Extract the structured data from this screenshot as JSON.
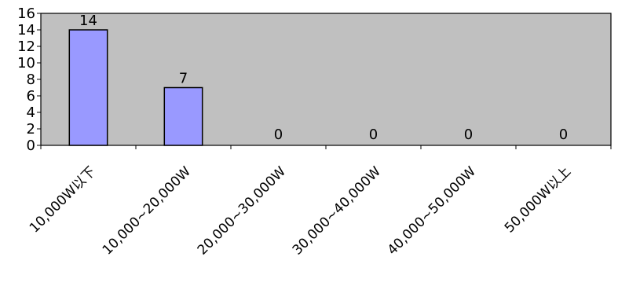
{
  "chart_data": {
    "type": "bar",
    "categories": [
      "10,000W以下",
      "10,000~20,000W",
      "20,000~30,000W",
      "30,000~40,000W",
      "40,000~50,000W",
      "50,000W以上"
    ],
    "values": [
      14,
      7,
      0,
      0,
      0,
      0
    ],
    "data_labels": [
      "14",
      "7",
      "0",
      "0",
      "0",
      "0"
    ],
    "title": "",
    "xlabel": "",
    "ylabel": "",
    "ylim": [
      0,
      16
    ],
    "yticks": [
      "0",
      "2",
      "4",
      "6",
      "8",
      "10",
      "12",
      "14",
      "16"
    ],
    "grid": false,
    "legend": "none",
    "plot_background": "#c0c0c0",
    "bar_color": "#9999ff",
    "bar_edge_color": "#000000"
  }
}
